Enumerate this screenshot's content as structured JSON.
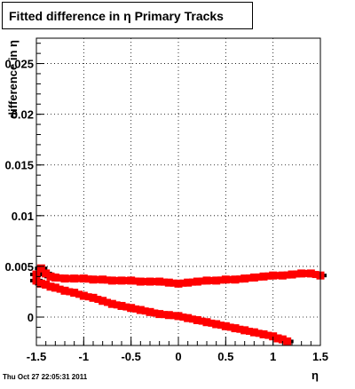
{
  "title": "Fitted difference in  η  Primary Tracks",
  "timestamp": "Thu Oct 27 22:05:31 2011",
  "chart_data": {
    "type": "scatter",
    "title": "Fitted difference in  η  Primary Tracks",
    "xlabel": "η",
    "ylabel": "difference in η",
    "xlim": [
      -1.5,
      1.5
    ],
    "ylim": [
      -0.0028,
      0.0275
    ],
    "x_ticks": [
      "-1.5",
      "-1",
      "-0.5",
      "0",
      "0.5",
      "1",
      "1.5"
    ],
    "y_ticks": [
      "0",
      "0.005",
      "0.01",
      "0.015",
      "0.02",
      "0.025"
    ],
    "grid": true,
    "colors": {
      "markers": "#ff0000",
      "error_bars": "#000000"
    },
    "series": [
      {
        "x": [
          -1.5,
          -1.45,
          -1.4,
          -1.35,
          -1.3,
          -1.2,
          -1.1,
          -1.0,
          -0.9,
          -0.8,
          -0.7,
          -0.6,
          -0.5,
          -0.4,
          -0.3,
          -0.2,
          -0.1,
          0.0,
          0.1,
          0.2,
          0.3,
          0.4,
          0.5,
          0.6,
          0.7,
          0.8,
          0.9,
          1.0,
          1.1,
          1.2,
          1.3,
          1.4,
          1.5
        ],
        "y": [
          0.0042,
          0.0048,
          0.0043,
          0.004,
          0.0039,
          0.0038,
          0.0038,
          0.0038,
          0.0037,
          0.0037,
          0.0036,
          0.0036,
          0.0036,
          0.0035,
          0.0035,
          0.0035,
          0.0034,
          0.0033,
          0.0034,
          0.0035,
          0.0036,
          0.0036,
          0.0037,
          0.0037,
          0.0038,
          0.0039,
          0.004,
          0.0041,
          0.0041,
          0.0042,
          0.0043,
          0.0043,
          0.0041
        ]
      },
      {
        "x": [
          -1.5,
          -1.45,
          -1.4,
          -1.35,
          -1.3,
          -1.2,
          -1.1,
          -1.0,
          -0.9,
          -0.8,
          -0.7,
          -0.6,
          -0.5,
          -0.4,
          -0.3,
          -0.2,
          -0.1,
          0.0,
          0.1,
          0.2,
          0.3,
          0.4,
          0.5,
          0.6,
          0.7,
          0.8,
          0.9,
          1.0,
          1.05,
          1.1,
          1.15
        ],
        "y": [
          0.0036,
          0.0033,
          0.0032,
          0.003,
          0.0029,
          0.0026,
          0.0024,
          0.0021,
          0.0019,
          0.0016,
          0.0013,
          0.0011,
          0.0009,
          0.0007,
          0.0005,
          0.0003,
          0.0002,
          0.0001,
          -0.0001,
          -0.0003,
          -0.0005,
          -0.0007,
          -0.0009,
          -0.0011,
          -0.0013,
          -0.0015,
          -0.0017,
          -0.0019,
          -0.0021,
          -0.0022,
          -0.0024
        ]
      }
    ]
  }
}
